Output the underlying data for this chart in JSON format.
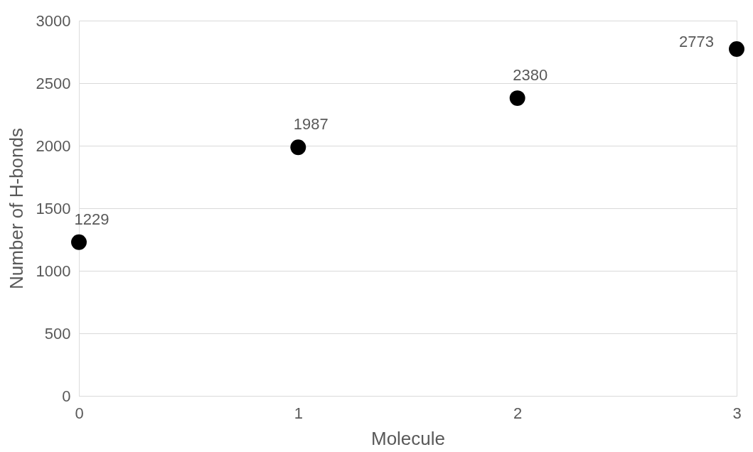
{
  "chart_data": {
    "type": "scatter",
    "xlabel": "Molecule",
    "ylabel": "Number of H-bonds",
    "x": [
      0,
      1,
      2,
      3
    ],
    "series": [
      {
        "color": "#000000",
        "values": [
          1229,
          1987,
          2380,
          2773
        ]
      }
    ],
    "xlim": [
      0,
      3
    ],
    "xticks": [
      0,
      1,
      2,
      3
    ],
    "ylim": [
      0,
      3000
    ],
    "yticks": [
      0,
      500,
      1000,
      1500,
      2000,
      2500,
      3000
    ],
    "grid": "y",
    "marker": "circle",
    "data_labels": true
  }
}
